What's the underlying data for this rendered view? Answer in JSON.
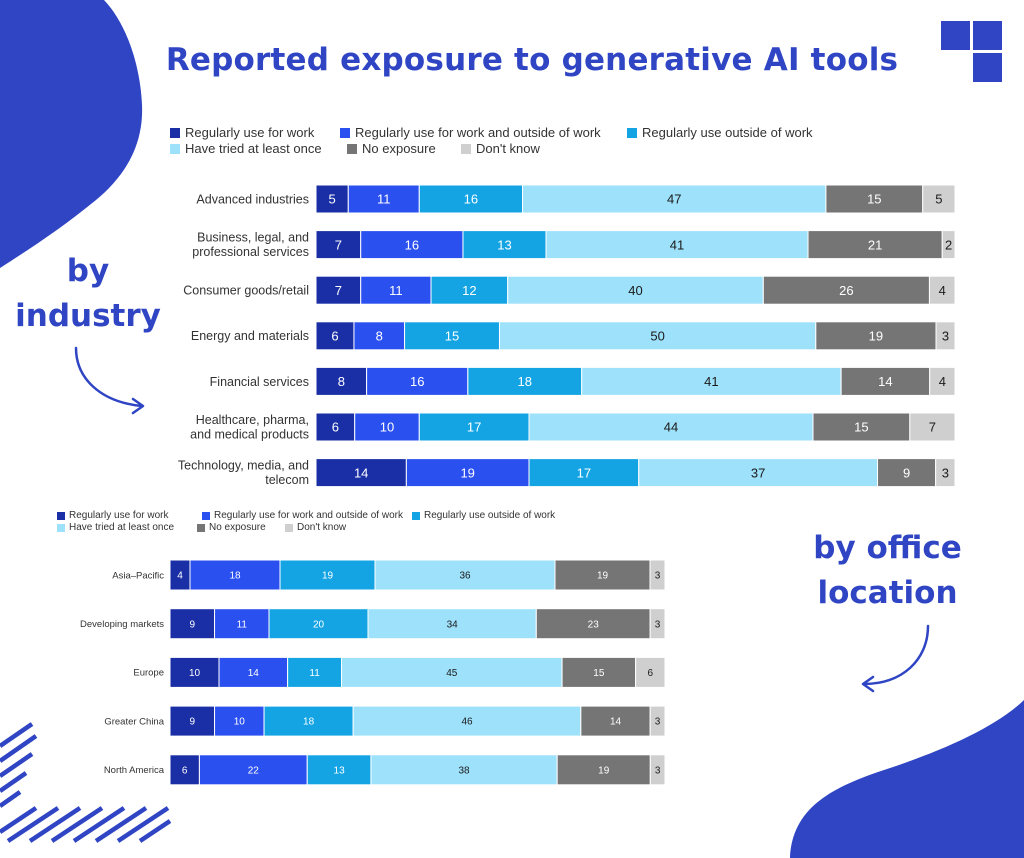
{
  "title": "Reported exposure to generative AI tools",
  "side_labels": {
    "industry": [
      "by",
      "industry"
    ],
    "office": [
      "by office",
      "location"
    ]
  },
  "colors": {
    "accent": "#2f45c4",
    "Regularly use for work": "#1a2fa6",
    "Regularly use for work and outside of work": "#2b50f0",
    "Regularly use outside of work": "#14a4e4",
    "Have tried at least once": "#9ee1fb",
    "No exposure": "#757575",
    "Don't know": "#cfcfcf"
  },
  "icons": [
    "blob-top-left",
    "grid-squares-logo",
    "arrow-curve-right-icon",
    "arrow-curve-left-icon",
    "diagonal-stripes-pattern",
    "blob-bottom-right"
  ],
  "chart_data": [
    {
      "type": "bar",
      "orientation": "horizontal",
      "stacked": true,
      "legend": [
        "Regularly use for work",
        "Regularly use for work and outside of work",
        "Regularly use outside of work",
        "Have tried at least once",
        "No exposure",
        "Don't know"
      ],
      "legend_position": "top",
      "categories": [
        [
          "Advanced industries"
        ],
        [
          "Business, legal, and",
          "professional services"
        ],
        [
          "Consumer goods/retail"
        ],
        [
          "Energy and materials"
        ],
        [
          "Financial services"
        ],
        [
          "Healthcare, pharma,",
          "and medical products"
        ],
        [
          "Technology, media, and",
          "telecom"
        ]
      ],
      "values": [
        [
          5,
          11,
          16,
          47,
          15,
          5
        ],
        [
          7,
          16,
          13,
          41,
          21,
          2
        ],
        [
          7,
          11,
          12,
          40,
          26,
          4
        ],
        [
          6,
          8,
          15,
          50,
          19,
          3
        ],
        [
          8,
          16,
          18,
          41,
          14,
          4
        ],
        [
          6,
          10,
          17,
          44,
          15,
          7
        ],
        [
          14,
          19,
          17,
          37,
          9,
          3
        ]
      ]
    },
    {
      "type": "bar",
      "orientation": "horizontal",
      "stacked": true,
      "legend": [
        "Regularly use for work",
        "Regularly use for work and outside of work",
        "Regularly use outside of work",
        "Have tried at least once",
        "No exposure",
        "Don't know"
      ],
      "legend_position": "top",
      "categories": [
        [
          "Asia–Pacific"
        ],
        [
          "Developing markets"
        ],
        [
          "Europe"
        ],
        [
          "Greater China"
        ],
        [
          "North America"
        ]
      ],
      "values": [
        [
          4,
          18,
          19,
          36,
          19,
          3
        ],
        [
          9,
          11,
          20,
          34,
          23,
          3
        ],
        [
          10,
          14,
          11,
          45,
          15,
          6
        ],
        [
          9,
          10,
          18,
          46,
          14,
          3
        ],
        [
          6,
          22,
          13,
          38,
          19,
          3
        ]
      ]
    }
  ]
}
